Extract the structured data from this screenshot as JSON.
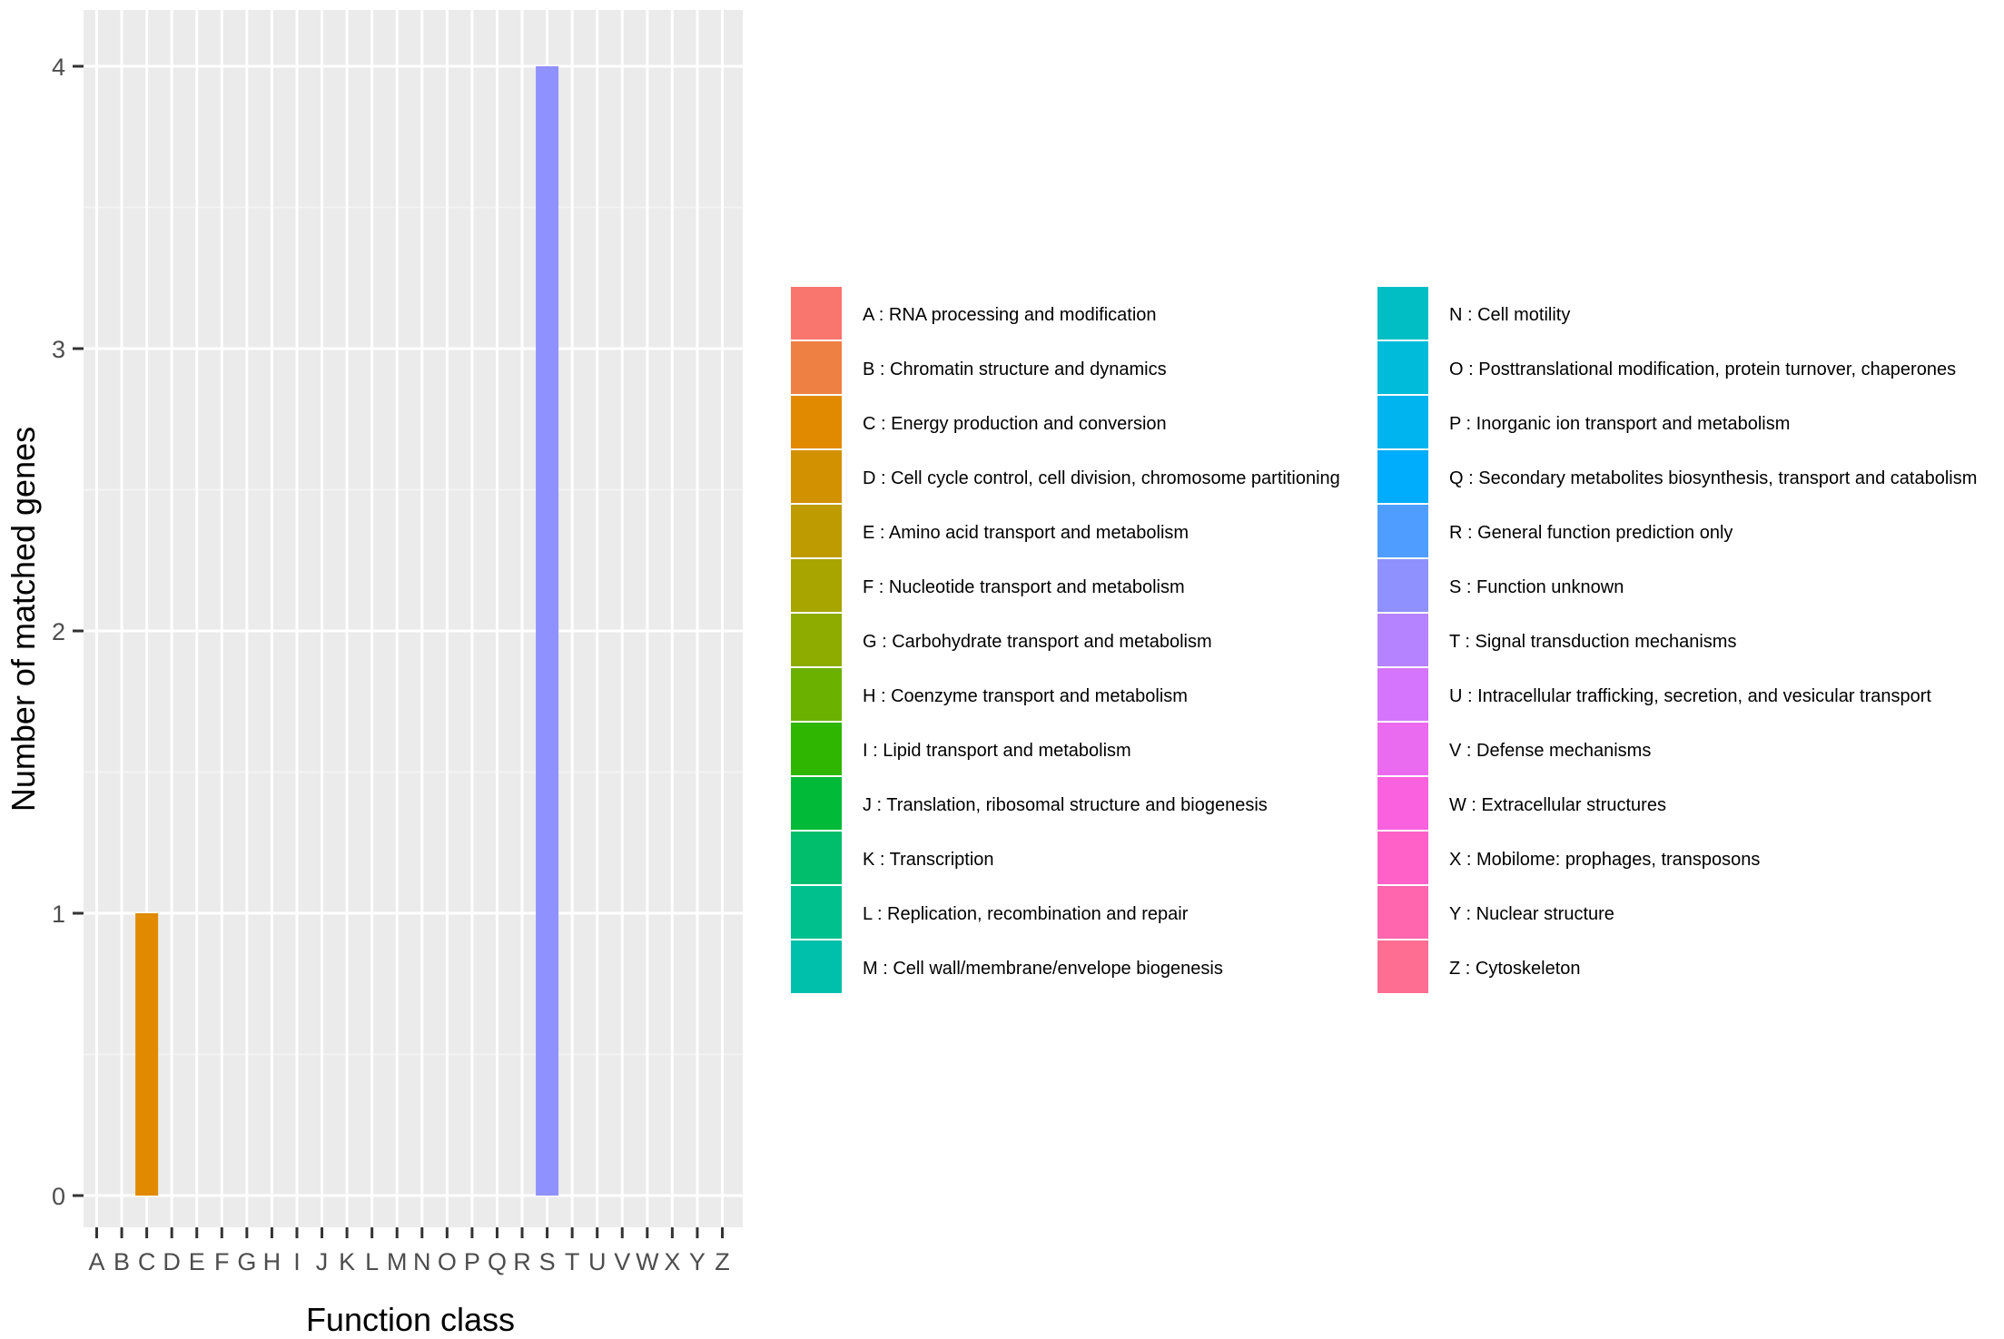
{
  "chart_data": {
    "type": "bar",
    "title": "",
    "xlabel": "Function class",
    "ylabel": "Number of matched genes",
    "ylim": [
      -0.2,
      4.2
    ],
    "yticks": [
      0,
      1,
      2,
      3,
      4
    ],
    "grid": true,
    "legend_position": "right",
    "categories": [
      "A",
      "B",
      "C",
      "D",
      "E",
      "F",
      "G",
      "H",
      "I",
      "J",
      "K",
      "L",
      "M",
      "N",
      "O",
      "P",
      "Q",
      "R",
      "S",
      "T",
      "U",
      "V",
      "W",
      "X",
      "Y",
      "Z"
    ],
    "values": [
      0,
      0,
      1,
      0,
      0,
      0,
      0,
      0,
      0,
      0,
      0,
      0,
      0,
      0,
      0,
      0,
      0,
      0,
      4,
      0,
      0,
      0,
      0,
      0,
      0,
      0
    ],
    "colors": [
      "#F8766D",
      "#EE8044",
      "#E18A00",
      "#D29200",
      "#BE9C00",
      "#A8A400",
      "#8EAB00",
      "#6BB100",
      "#2FB600",
      "#00BA38",
      "#00BE6C",
      "#00C08E",
      "#00C0AB",
      "#00BEC4",
      "#00BBDA",
      "#00B4EF",
      "#00ACFC",
      "#4F9EFF",
      "#8F91FF",
      "#B583FF",
      "#D575FE",
      "#EB6BF0",
      "#F961DE",
      "#FF61C8",
      "#FF66AE",
      "#FE6E93"
    ],
    "legend": [
      "A : RNA processing and modification",
      "B : Chromatin structure and dynamics",
      "C : Energy production and conversion",
      "D : Cell cycle control, cell division, chromosome partitioning",
      "E : Amino acid transport and metabolism",
      "F : Nucleotide transport and metabolism",
      "G : Carbohydrate transport and metabolism",
      "H : Coenzyme transport and metabolism",
      "I : Lipid transport and metabolism",
      "J : Translation, ribosomal structure and biogenesis",
      "K : Transcription",
      "L : Replication, recombination and repair",
      "M : Cell wall/membrane/envelope biogenesis",
      "N : Cell motility",
      "O : Posttranslational modification, protein turnover, chaperones",
      "P : Inorganic ion transport and metabolism",
      "Q : Secondary metabolites biosynthesis, transport and catabolism",
      "R : General function prediction only",
      "S : Function unknown",
      "T : Signal transduction mechanisms",
      "U : Intracellular trafficking, secretion, and vesicular transport",
      "V : Defense mechanisms",
      "W : Extracellular structures",
      "X : Mobilome: prophages, transposons",
      "Y : Nuclear structure",
      "Z : Cytoskeleton"
    ]
  }
}
